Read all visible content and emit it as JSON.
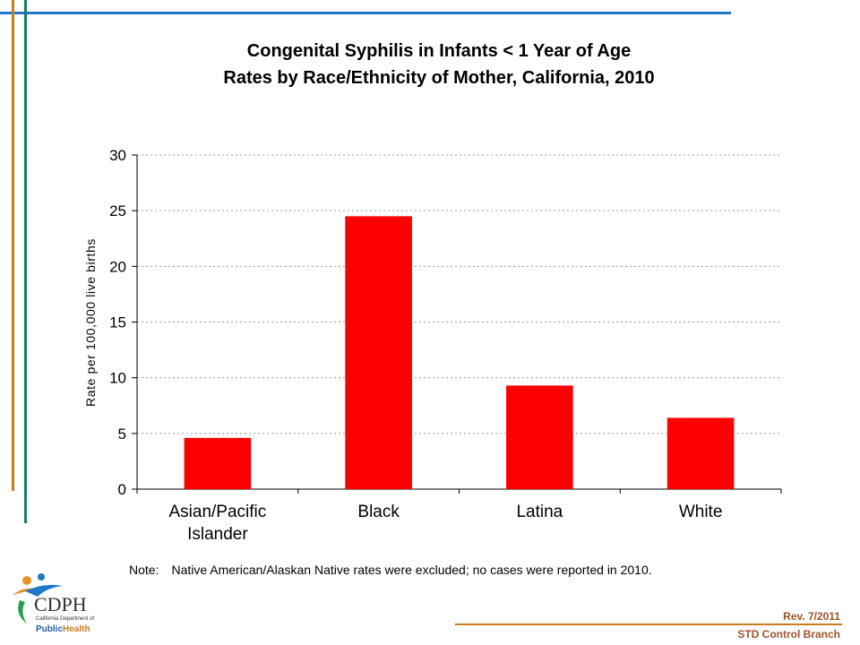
{
  "slide": {
    "title_line1": "Congenital Syphilis in Infants < 1 Year of Age",
    "title_line2": "Rates by Race/Ethnicity of Mother, California, 2010",
    "note_label": "Note:",
    "note_text": "Native American/Alaskan Native rates were excluded; no cases were reported in 2010.",
    "rev_text": "Rev. 7/2011",
    "branch_text": "STD Control Branch",
    "logo": {
      "abbr": "CDPH",
      "line1": "California Department of",
      "line2_public": "Public",
      "line2_health": "Health"
    }
  },
  "colors": {
    "bar": "#ff0000",
    "accent_blue": "#1f78c8",
    "accent_orange": "#c87d1e",
    "accent_teal": "#1a7a6e",
    "footer_text": "#a0522d"
  },
  "chart_data": {
    "type": "bar",
    "categories": [
      [
        "Asian/Pacific",
        "Islander"
      ],
      [
        "Black"
      ],
      [
        "Latina"
      ],
      [
        "White"
      ]
    ],
    "values": [
      4.6,
      24.5,
      9.3,
      6.4
    ],
    "title": "Congenital Syphilis in Infants < 1 Year of Age Rates by Race/Ethnicity of Mother, California, 2010",
    "ylabel": "Rate per 100,000 live births",
    "ylim": [
      0,
      30
    ],
    "yticks": [
      0,
      5,
      10,
      15,
      20,
      25,
      30
    ],
    "grid": true,
    "legend": "none"
  }
}
